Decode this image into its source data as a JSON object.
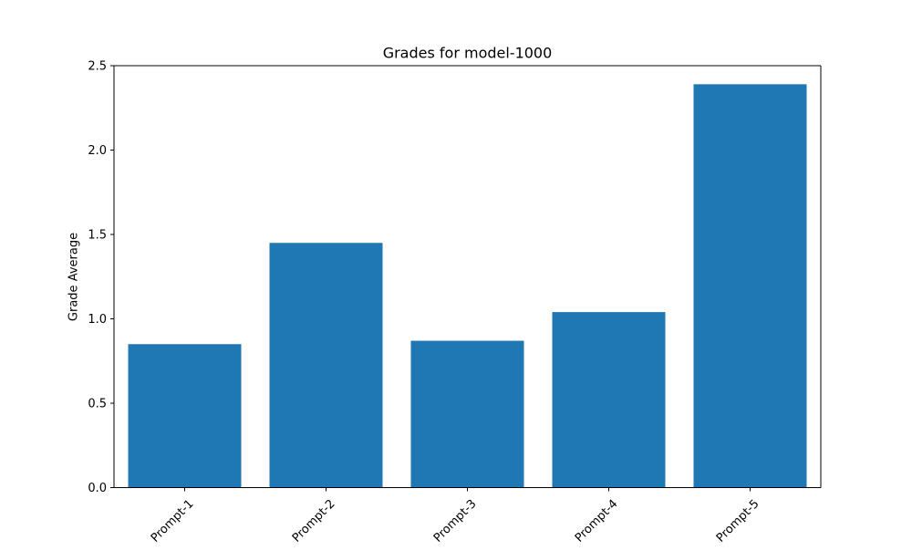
{
  "chart_data": {
    "type": "bar",
    "title": "Grades for model-1000",
    "xlabel": "",
    "ylabel": "Grade Average",
    "categories": [
      "Prompt-1",
      "Prompt-2",
      "Prompt-3",
      "Prompt-4",
      "Prompt-5"
    ],
    "values": [
      0.85,
      1.45,
      0.87,
      1.04,
      2.39
    ],
    "ylim": [
      0,
      2.5
    ],
    "yticks": [
      0.0,
      0.5,
      1.0,
      1.5,
      2.0,
      2.5
    ],
    "ytick_labels": [
      "0.0",
      "0.5",
      "1.0",
      "1.5",
      "2.0",
      "2.5"
    ],
    "bar_color": "#1f77b4",
    "grid": false,
    "legend": "none"
  }
}
